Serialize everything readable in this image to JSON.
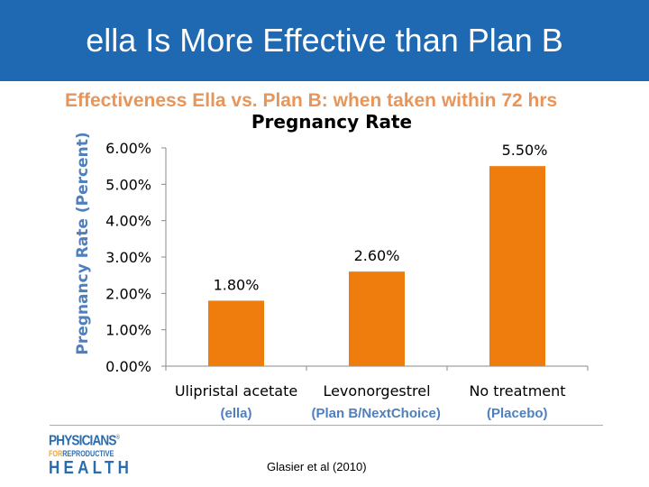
{
  "header": {
    "title": "ella Is More Effective than Plan B",
    "background_color": "#1e69b1"
  },
  "subtitle": "Effectiveness Ella vs. Plan B: when taken within 72 hrs",
  "chart_data": {
    "type": "bar",
    "title": "Pregnancy Rate",
    "xlabel": "",
    "ylabel": "Pregnancy Rate (Percent)",
    "categories": [
      "Ulipristal acetate",
      "Levonorgestrel",
      "No treatment"
    ],
    "category_sublabels": [
      "(ella)",
      "(Plan B/NextChoice)",
      "(Placebo)"
    ],
    "values": [
      1.8,
      2.6,
      5.5
    ],
    "data_labels": [
      "1.80%",
      "2.60%",
      "5.50%"
    ],
    "ylim": [
      0,
      6
    ],
    "yticks": [
      0,
      1,
      2,
      3,
      4,
      5,
      6
    ],
    "ytick_labels": [
      "0.00%",
      "1.00%",
      "2.00%",
      "3.00%",
      "4.00%",
      "5.00%",
      "6.00%"
    ],
    "grid": false,
    "legend": "none",
    "bar_color": "#ef7d0e"
  },
  "footer": {
    "logo": {
      "line1": "PHYSICIANS",
      "registered": "®",
      "line2_for": "FOR",
      "line2_rest": "REPRODUCTIVE",
      "line3": "HEALTH"
    },
    "citation": "Glasier et al (2010)"
  }
}
